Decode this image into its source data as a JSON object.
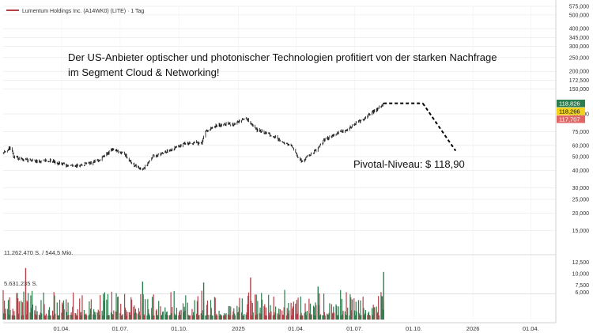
{
  "header": {
    "symbol_title": "Lumentum Holdings Inc. (A14WK0) (LITE) · 1 Tag"
  },
  "annotation": {
    "headline_line1": "Der US-Anbieter optischer und photonischer Technologien profitiert von der starken Nachfrage",
    "headline_line2": "im Segment Cloud & Networking!",
    "pivot_label": "Pivotal-Niveau: $ 118,90"
  },
  "price_tags": [
    {
      "text": "118,826",
      "color": "#2e7d4f"
    },
    {
      "text": "118,266",
      "color": "#f2d21b"
    },
    {
      "text": "117,707",
      "color": "#e06666"
    }
  ],
  "volume_labels": {
    "max_text": "11.262.470 S. / 544,5 Mio.",
    "mid_text": "5.631.235 S."
  },
  "colors": {
    "up": "#2e7d4f",
    "down": "#b5404a",
    "candle": "#111111",
    "grid": "#e6e6e6"
  },
  "chart_data": {
    "type": "line",
    "title": "Lumentum Holdings Inc. (A14WK0) (LITE) · 1 Tag",
    "y_scale": "log",
    "ylim": [
      14,
      575
    ],
    "y_ticks": [
      {
        "v": 575,
        "t": "575,000"
      },
      {
        "v": 500,
        "t": "500,000"
      },
      {
        "v": 400,
        "t": "400,000"
      },
      {
        "v": 345,
        "t": "345,000"
      },
      {
        "v": 300,
        "t": "300,000"
      },
      {
        "v": 250,
        "t": "250,000"
      },
      {
        "v": 200,
        "t": "200,000"
      },
      {
        "v": 172.5,
        "t": "172,500"
      },
      {
        "v": 150,
        "t": "150,000"
      },
      {
        "v": 100,
        "t": "100,000"
      },
      {
        "v": 75,
        "t": "75,000"
      },
      {
        "v": 60,
        "t": "60,000"
      },
      {
        "v": 50,
        "t": "50,000"
      },
      {
        "v": 40,
        "t": "40,000"
      },
      {
        "v": 30,
        "t": "30,000"
      },
      {
        "v": 25,
        "t": "25,000"
      },
      {
        "v": 20,
        "t": "20,000"
      },
      {
        "v": 15,
        "t": "15,000"
      }
    ],
    "x_ticks": [
      "01.04.",
      "01.07.",
      "01.10.",
      "2025",
      "01.04.",
      "01.07.",
      "01.10.",
      "2026",
      "01.04."
    ],
    "x_range": [
      "2024-01-01",
      "2026-05-10"
    ],
    "price_series": [
      {
        "date": "2024-01-01",
        "price": 53
      },
      {
        "date": "2024-01-12",
        "price": 58
      },
      {
        "date": "2024-01-18",
        "price": 49
      },
      {
        "date": "2024-02-01",
        "price": 48
      },
      {
        "date": "2024-02-20",
        "price": 46
      },
      {
        "date": "2024-03-15",
        "price": 47
      },
      {
        "date": "2024-04-10",
        "price": 43
      },
      {
        "date": "2024-04-25",
        "price": 43
      },
      {
        "date": "2024-05-15",
        "price": 45
      },
      {
        "date": "2024-06-01",
        "price": 48
      },
      {
        "date": "2024-06-20",
        "price": 57
      },
      {
        "date": "2024-07-08",
        "price": 52
      },
      {
        "date": "2024-07-20",
        "price": 45
      },
      {
        "date": "2024-08-05",
        "price": 40
      },
      {
        "date": "2024-08-20",
        "price": 50
      },
      {
        "date": "2024-09-10",
        "price": 54
      },
      {
        "date": "2024-10-01",
        "price": 60
      },
      {
        "date": "2024-10-20",
        "price": 63
      },
      {
        "date": "2024-11-05",
        "price": 62
      },
      {
        "date": "2024-11-10",
        "price": 74
      },
      {
        "date": "2024-11-25",
        "price": 82
      },
      {
        "date": "2024-12-10",
        "price": 85
      },
      {
        "date": "2024-12-25",
        "price": 84
      },
      {
        "date": "2025-01-05",
        "price": 90
      },
      {
        "date": "2025-01-15",
        "price": 92
      },
      {
        "date": "2025-01-28",
        "price": 78
      },
      {
        "date": "2025-02-10",
        "price": 74
      },
      {
        "date": "2025-02-25",
        "price": 70
      },
      {
        "date": "2025-03-10",
        "price": 63
      },
      {
        "date": "2025-03-25",
        "price": 60
      },
      {
        "date": "2025-04-04",
        "price": 49
      },
      {
        "date": "2025-04-10",
        "price": 46
      },
      {
        "date": "2025-04-20",
        "price": 51
      },
      {
        "date": "2025-05-01",
        "price": 55
      },
      {
        "date": "2025-05-15",
        "price": 66
      },
      {
        "date": "2025-06-01",
        "price": 72
      },
      {
        "date": "2025-06-20",
        "price": 78
      },
      {
        "date": "2025-07-05",
        "price": 87
      },
      {
        "date": "2025-07-20",
        "price": 96
      },
      {
        "date": "2025-08-05",
        "price": 108
      },
      {
        "date": "2025-08-15",
        "price": 118.3
      }
    ],
    "forecast_path": [
      {
        "date": "2025-08-15",
        "price": 118.9
      },
      {
        "date": "2025-10-15",
        "price": 118.9
      },
      {
        "date": "2025-12-05",
        "price": 55
      }
    ],
    "volume": {
      "ylim": [
        0,
        14000000
      ],
      "y_ticks": [
        {
          "v": 12500000,
          "t": "12,500"
        },
        {
          "v": 10000000,
          "t": "10,000"
        },
        {
          "v": 7500000,
          "t": "7,500"
        },
        {
          "v": 6000000,
          "t": "6,000"
        }
      ],
      "max_value": 11262470,
      "mid_value": 5631235
    }
  }
}
